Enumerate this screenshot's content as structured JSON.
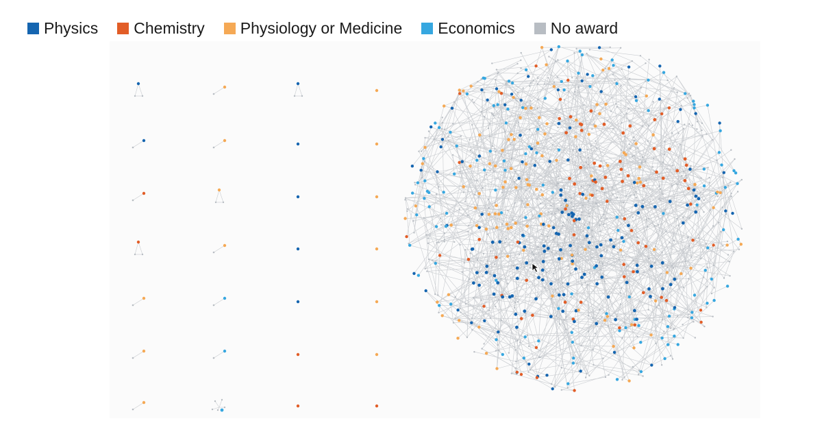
{
  "legend": {
    "items": [
      {
        "label": "Physics",
        "color": "#1565b0"
      },
      {
        "label": "Chemistry",
        "color": "#e25d27"
      },
      {
        "label": "Physiology or Medicine",
        "color": "#f5a955"
      },
      {
        "label": "Economics",
        "color": "#36a7e0"
      },
      {
        "label": "No award",
        "color": "#b8bdc3"
      }
    ]
  },
  "colors": {
    "edge": "#c9ccd0",
    "background": "#fbfbfb"
  },
  "icons": {
    "cursor": "mouse-pointer-icon"
  }
}
